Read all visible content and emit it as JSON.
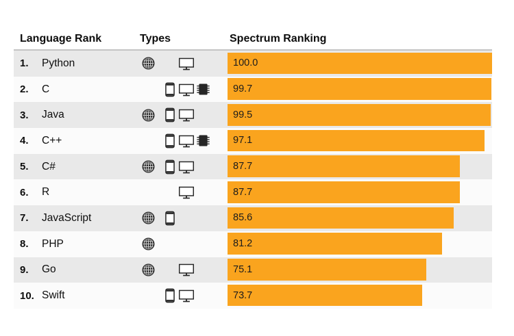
{
  "header": {
    "col_language": "Language Rank",
    "col_types": "Types",
    "col_ranking": "Spectrum Ranking"
  },
  "colors": {
    "bar": "#FAA41E",
    "row_odd": "#E9E9E9",
    "row_even": "#FBFBFB",
    "header_rule": "#C4C4C4",
    "icon": "#2B2B2B",
    "text": "#0D0D0D"
  },
  "icon_legend": {
    "web": "globe-icon",
    "mobile": "smartphone-icon",
    "desktop": "monitor-icon",
    "embedded": "chip-icon"
  },
  "rows": [
    {
      "rank": "1.",
      "language": "Python",
      "score": "100.0",
      "value": 100.0,
      "types": {
        "web": true,
        "mobile": false,
        "desktop": true,
        "embedded": false
      }
    },
    {
      "rank": "2.",
      "language": "C",
      "score": "99.7",
      "value": 99.7,
      "types": {
        "web": false,
        "mobile": true,
        "desktop": true,
        "embedded": true
      }
    },
    {
      "rank": "3.",
      "language": "Java",
      "score": "99.5",
      "value": 99.5,
      "types": {
        "web": true,
        "mobile": true,
        "desktop": true,
        "embedded": false
      }
    },
    {
      "rank": "4.",
      "language": "C++",
      "score": "97.1",
      "value": 97.1,
      "types": {
        "web": false,
        "mobile": true,
        "desktop": true,
        "embedded": true
      }
    },
    {
      "rank": "5.",
      "language": "C#",
      "score": "87.7",
      "value": 87.7,
      "types": {
        "web": true,
        "mobile": true,
        "desktop": true,
        "embedded": false
      }
    },
    {
      "rank": "6.",
      "language": "R",
      "score": "87.7",
      "value": 87.7,
      "types": {
        "web": false,
        "mobile": false,
        "desktop": true,
        "embedded": false
      }
    },
    {
      "rank": "7.",
      "language": "JavaScript",
      "score": "85.6",
      "value": 85.6,
      "types": {
        "web": true,
        "mobile": true,
        "desktop": false,
        "embedded": false
      }
    },
    {
      "rank": "8.",
      "language": "PHP",
      "score": "81.2",
      "value": 81.2,
      "types": {
        "web": true,
        "mobile": false,
        "desktop": false,
        "embedded": false
      }
    },
    {
      "rank": "9.",
      "language": "Go",
      "score": "75.1",
      "value": 75.1,
      "types": {
        "web": true,
        "mobile": false,
        "desktop": true,
        "embedded": false
      }
    },
    {
      "rank": "10.",
      "language": "Swift",
      "score": "73.7",
      "value": 73.7,
      "types": {
        "web": false,
        "mobile": true,
        "desktop": true,
        "embedded": false
      }
    }
  ],
  "chart_data": {
    "type": "bar",
    "orientation": "horizontal",
    "title": "Spectrum Ranking",
    "categories": [
      "Python",
      "C",
      "Java",
      "C++",
      "C#",
      "R",
      "JavaScript",
      "PHP",
      "Go",
      "Swift"
    ],
    "values": [
      100.0,
      99.7,
      99.5,
      97.1,
      87.7,
      87.7,
      85.6,
      81.2,
      75.1,
      73.7
    ],
    "value_labels": [
      "100.0",
      "99.7",
      "99.5",
      "97.1",
      "87.7",
      "87.7",
      "85.6",
      "81.2",
      "75.1",
      "73.7"
    ],
    "xlim": [
      0,
      100
    ],
    "bar_color": "#FAA41E",
    "grid": false,
    "legend_position": "none",
    "annotations": {
      "rank_labels": [
        "1.",
        "2.",
        "3.",
        "4.",
        "5.",
        "6.",
        "7.",
        "8.",
        "9.",
        "10."
      ],
      "platform_types": [
        [
          "web",
          "desktop"
        ],
        [
          "mobile",
          "desktop",
          "embedded"
        ],
        [
          "web",
          "mobile",
          "desktop"
        ],
        [
          "mobile",
          "desktop",
          "embedded"
        ],
        [
          "web",
          "mobile",
          "desktop"
        ],
        [
          "desktop"
        ],
        [
          "web",
          "mobile"
        ],
        [
          "web"
        ],
        [
          "web",
          "desktop"
        ],
        [
          "mobile",
          "desktop"
        ]
      ]
    }
  }
}
